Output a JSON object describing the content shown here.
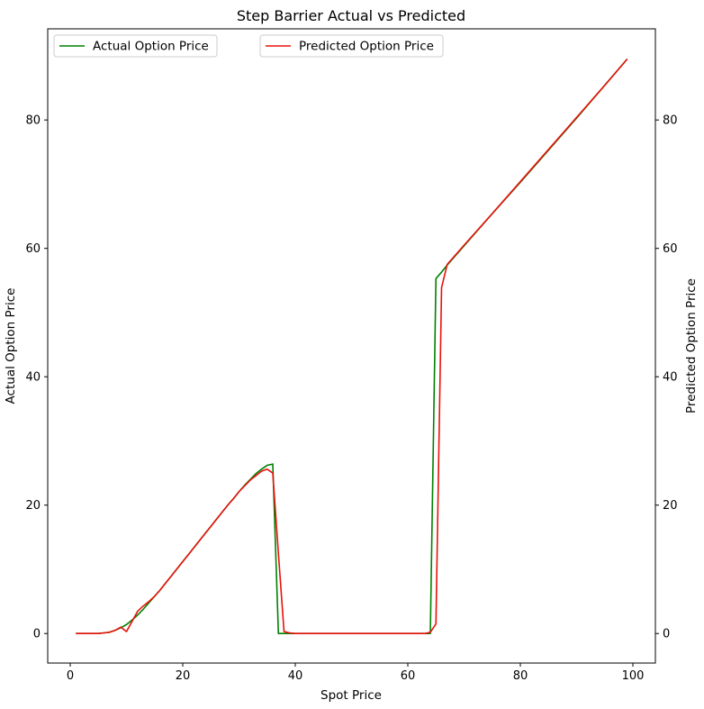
{
  "chart_data": {
    "type": "line",
    "title": "Step Barrier Actual vs Predicted",
    "xlabel": "Spot Price",
    "ylabel_left": "Actual Option Price",
    "ylabel_right": "Predicted Option Price",
    "xlim": [
      -4,
      104
    ],
    "ylim": [
      -4.6,
      94.2
    ],
    "xticks": [
      0,
      20,
      40,
      60,
      80,
      100
    ],
    "yticks": [
      0,
      20,
      40,
      60,
      80
    ],
    "grid": false,
    "legend_actual_placement": "top-left",
    "legend_predicted_placement": "top-center",
    "series": [
      {
        "name": "Actual Option Price",
        "axis": "left",
        "color": "#008000",
        "points": [
          [
            1,
            0
          ],
          [
            2,
            0
          ],
          [
            3,
            0
          ],
          [
            4,
            0
          ],
          [
            5,
            0
          ],
          [
            6,
            0.1
          ],
          [
            7,
            0.2
          ],
          [
            8,
            0.5
          ],
          [
            9,
            0.9
          ],
          [
            10,
            1.4
          ],
          [
            11,
            2.1
          ],
          [
            12,
            2.9
          ],
          [
            13,
            3.8
          ],
          [
            14,
            4.8
          ],
          [
            15,
            5.8
          ],
          [
            16,
            6.8
          ],
          [
            17,
            7.9
          ],
          [
            18,
            9.0
          ],
          [
            19,
            10.1
          ],
          [
            20,
            11.2
          ],
          [
            21,
            12.3
          ],
          [
            22,
            13.4
          ],
          [
            23,
            14.5
          ],
          [
            24,
            15.6
          ],
          [
            25,
            16.7
          ],
          [
            26,
            17.8
          ],
          [
            27,
            18.9
          ],
          [
            28,
            20.0
          ],
          [
            29,
            21.0
          ],
          [
            30,
            22.1
          ],
          [
            31,
            23.1
          ],
          [
            32,
            24.0
          ],
          [
            33,
            24.9
          ],
          [
            34,
            25.6
          ],
          [
            35,
            26.2
          ],
          [
            36,
            26.4
          ],
          [
            37,
            0
          ],
          [
            38,
            0
          ],
          [
            40,
            0
          ],
          [
            45,
            0
          ],
          [
            50,
            0
          ],
          [
            55,
            0
          ],
          [
            60,
            0
          ],
          [
            62,
            0
          ],
          [
            64,
            0
          ],
          [
            65,
            55.3
          ],
          [
            66,
            56.3
          ],
          [
            67,
            57.4
          ],
          [
            68,
            58.4
          ],
          [
            70,
            60.4
          ],
          [
            75,
            65.4
          ],
          [
            80,
            70.3
          ],
          [
            85,
            75.3
          ],
          [
            90,
            80.3
          ],
          [
            95,
            85.4
          ],
          [
            99,
            89.5
          ]
        ]
      },
      {
        "name": "Predicted Option Price",
        "axis": "right",
        "color": "#e8120c",
        "points": [
          [
            1,
            0
          ],
          [
            2,
            0
          ],
          [
            3,
            0
          ],
          [
            4,
            0
          ],
          [
            5,
            0
          ],
          [
            6,
            0.1
          ],
          [
            7,
            0.2
          ],
          [
            8,
            0.5
          ],
          [
            9,
            1.0
          ],
          [
            10,
            0.3
          ],
          [
            11,
            1.9
          ],
          [
            12,
            3.5
          ],
          [
            13,
            4.3
          ],
          [
            14,
            5.0
          ],
          [
            15,
            5.8
          ],
          [
            16,
            6.8
          ],
          [
            17,
            7.9
          ],
          [
            18,
            9.0
          ],
          [
            19,
            10.1
          ],
          [
            20,
            11.2
          ],
          [
            21,
            12.3
          ],
          [
            22,
            13.4
          ],
          [
            23,
            14.5
          ],
          [
            24,
            15.6
          ],
          [
            25,
            16.7
          ],
          [
            26,
            17.8
          ],
          [
            27,
            18.9
          ],
          [
            28,
            20.0
          ],
          [
            29,
            21.0
          ],
          [
            30,
            22.1
          ],
          [
            31,
            23.0
          ],
          [
            32,
            23.9
          ],
          [
            33,
            24.6
          ],
          [
            34,
            25.3
          ],
          [
            35,
            25.6
          ],
          [
            36,
            25.0
          ],
          [
            37,
            12.5
          ],
          [
            38,
            0.3
          ],
          [
            39,
            0.1
          ],
          [
            40,
            0
          ],
          [
            45,
            0
          ],
          [
            50,
            0
          ],
          [
            55,
            0
          ],
          [
            60,
            0
          ],
          [
            63,
            0
          ],
          [
            64,
            0.2
          ],
          [
            65,
            1.5
          ],
          [
            66,
            53.9
          ],
          [
            67,
            57.5
          ],
          [
            68,
            58.5
          ],
          [
            70,
            60.5
          ],
          [
            75,
            65.4
          ],
          [
            80,
            70.4
          ],
          [
            85,
            75.4
          ],
          [
            90,
            80.4
          ],
          [
            95,
            85.4
          ],
          [
            99,
            89.5
          ]
        ]
      }
    ]
  }
}
